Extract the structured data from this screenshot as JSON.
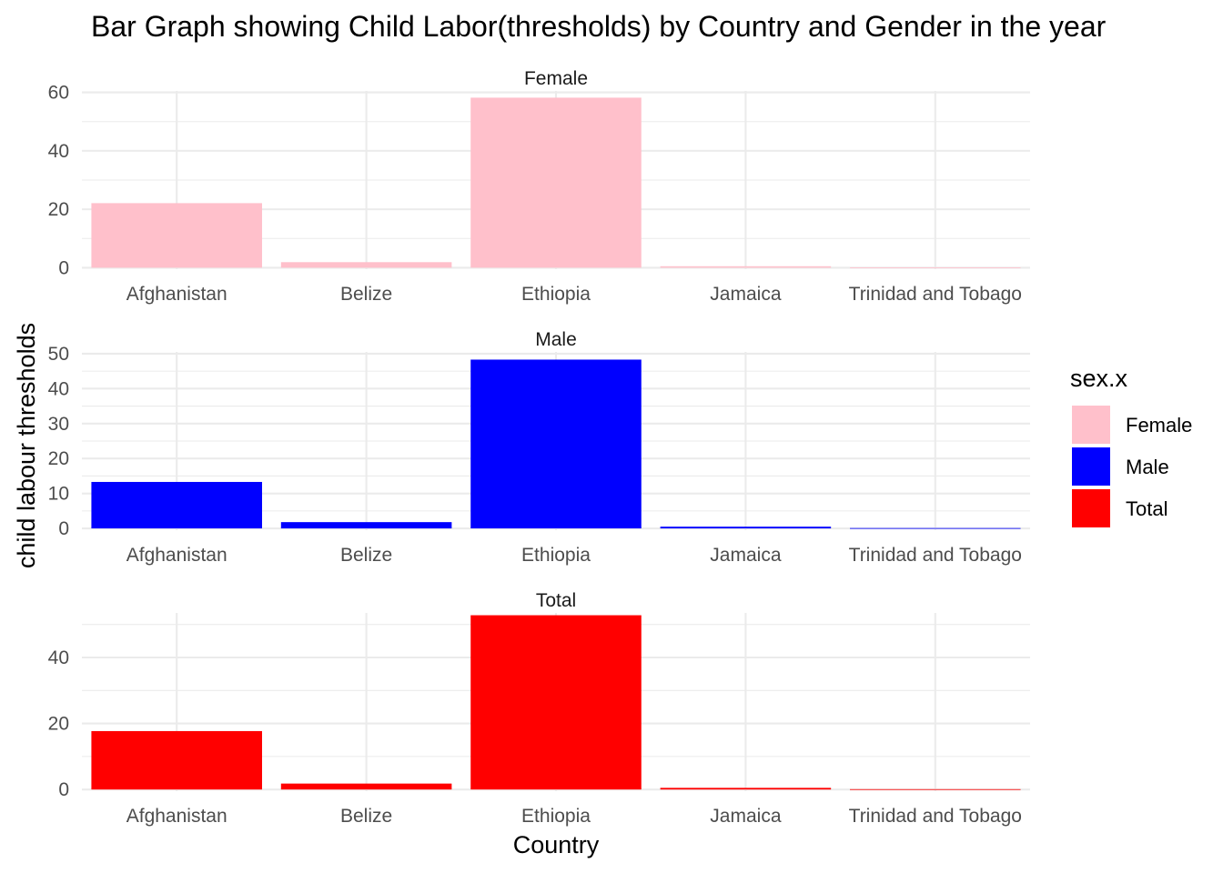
{
  "chart_data": {
    "type": "bar",
    "title": "Bar Graph showing Child Labor(thresholds) by Country and Gender in the year",
    "xlabel": "Country",
    "ylabel": "child labour thresholds",
    "categories": [
      "Afghanistan",
      "Belize",
      "Ethiopia",
      "Jamaica",
      "Trinidad and Tobago"
    ],
    "legend": {
      "title": "sex.x",
      "placement": "right",
      "entries": [
        {
          "label": "Female",
          "color": "#FFC0CB"
        },
        {
          "label": "Male",
          "color": "#0000FF"
        },
        {
          "label": "Total",
          "color": "#FF0000"
        }
      ]
    },
    "facets": [
      {
        "name": "Female",
        "color": "#FFC0CB",
        "values": [
          22.1,
          1.9,
          58.2,
          0.5,
          0.1
        ],
        "ylim": [
          -0.5,
          60.5
        ],
        "yticks": [
          0,
          20,
          40,
          60
        ]
      },
      {
        "name": "Male",
        "color": "#0000FF",
        "values": [
          13.3,
          1.8,
          48.3,
          0.5,
          0.1
        ],
        "ylim": [
          -0.5,
          50.5
        ],
        "yticks": [
          0,
          10,
          20,
          30,
          40,
          50
        ]
      },
      {
        "name": "Total",
        "color": "#FF0000",
        "values": [
          17.7,
          1.8,
          52.8,
          0.5,
          0.1
        ],
        "ylim": [
          -0.5,
          53.5
        ],
        "yticks": [
          0,
          20,
          40
        ]
      }
    ],
    "grid": true
  }
}
